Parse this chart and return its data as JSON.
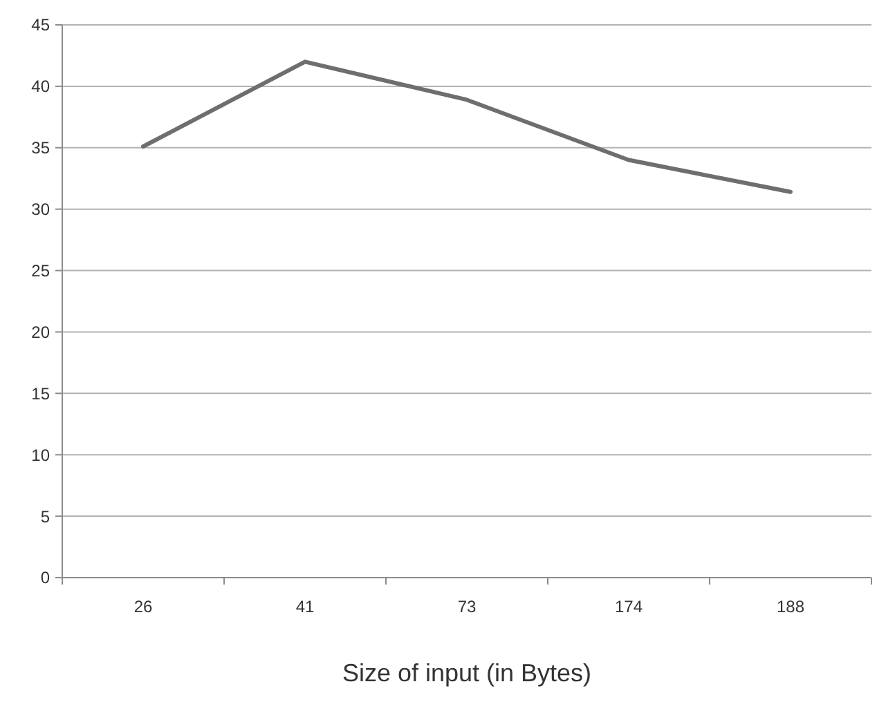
{
  "chart_data": {
    "type": "line",
    "xlabel": "Size of input (in Bytes)",
    "categories": [
      "26",
      "41",
      "73",
      "174",
      "188"
    ],
    "series": [
      {
        "color": "#6e6e6e",
        "values": [
          35.1,
          42,
          38.9,
          34,
          31.4
        ]
      }
    ],
    "ylim": [
      0,
      45
    ],
    "yticks": [
      0,
      5,
      10,
      15,
      20,
      25,
      30,
      35,
      40,
      45
    ],
    "grid": "y",
    "marker": "none",
    "line_style": "solid"
  }
}
